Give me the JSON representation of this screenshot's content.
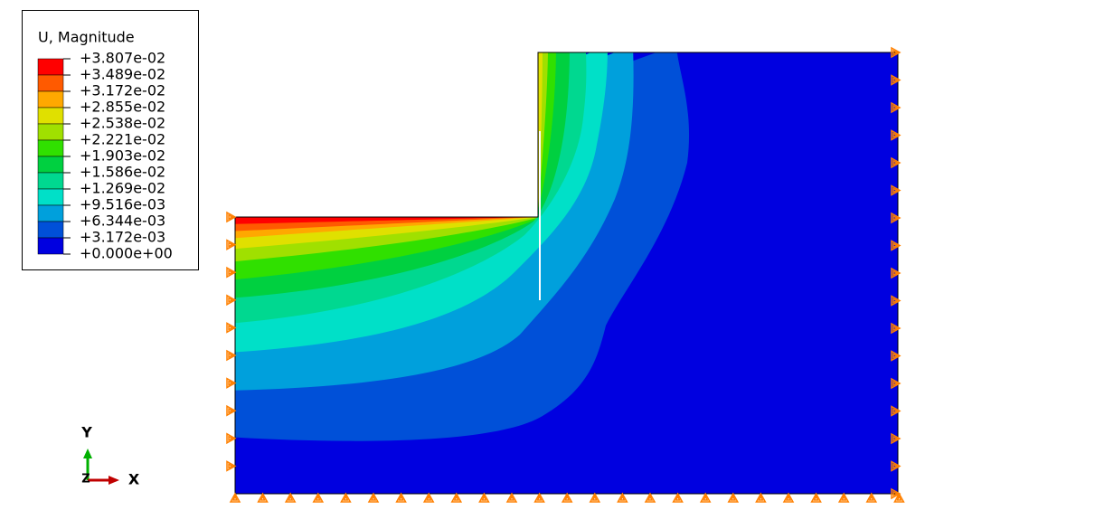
{
  "legend": {
    "title": "U, Magnitude",
    "levels": [
      "+3.807e-02",
      "+3.489e-02",
      "+3.172e-02",
      "+2.855e-02",
      "+2.538e-02",
      "+2.221e-02",
      "+1.903e-02",
      "+1.586e-02",
      "+1.269e-02",
      "+9.516e-03",
      "+6.344e-03",
      "+3.172e-03",
      "+0.000e+00"
    ],
    "colors": [
      "#ff0000",
      "#ff5a00",
      "#ffa800",
      "#e0e000",
      "#a0e000",
      "#30e000",
      "#00d040",
      "#00d890",
      "#00e0c8",
      "#00a0dc",
      "#0050d8",
      "#0000e0"
    ]
  },
  "triad": {
    "y": "Y",
    "x": "X",
    "z": "Z"
  }
}
